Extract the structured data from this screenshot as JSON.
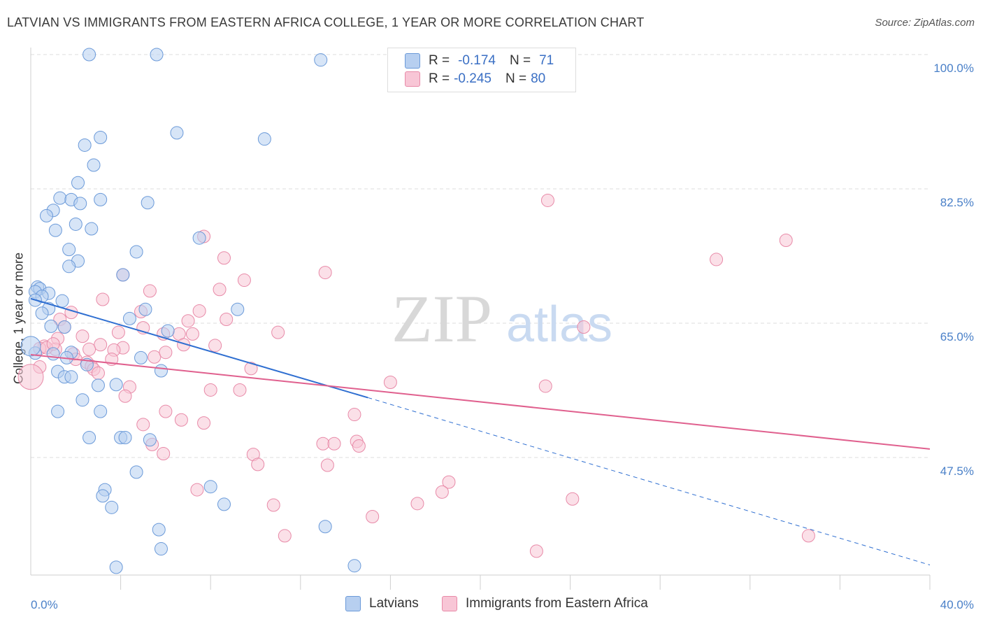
{
  "title": "LATVIAN VS IMMIGRANTS FROM EASTERN AFRICA COLLEGE, 1 YEAR OR MORE CORRELATION CHART",
  "source": "Source: ZipAtlas.com",
  "watermark": {
    "zip": "ZIP",
    "atlas": "atlas"
  },
  "legend": {
    "rows": [
      {
        "r_label": "R =",
        "r_value": "-0.174",
        "n_label": "N =",
        "n_value": "71"
      },
      {
        "r_label": "R =",
        "r_value": "-0.245",
        "n_label": "N =",
        "n_value": "80"
      }
    ]
  },
  "colors": {
    "blue_fill": "#b7cff0",
    "blue_stroke": "#6b9ad9",
    "blue_line": "#2f6fd1",
    "pink_fill": "#f8c6d6",
    "pink_stroke": "#e88aa8",
    "pink_line": "#e0608e",
    "grid": "#dddddd",
    "tick_text": "#4a80c8"
  },
  "chart_data": {
    "type": "scatter",
    "ylabel": "College, 1 year or more",
    "xlim": [
      0,
      40
    ],
    "ylim": [
      35,
      100
    ],
    "y_ticks": [
      47.5,
      65.0,
      82.5,
      100.0
    ],
    "y_tick_labels": [
      "47.5%",
      "65.0%",
      "82.5%",
      "100.0%"
    ],
    "x_tick_labels": [
      "0.0%",
      "40.0%"
    ],
    "series": [
      {
        "name": "Latvians",
        "r": -0.174,
        "n": 71,
        "trend": {
          "x": [
            0,
            15
          ],
          "y": [
            68.2,
            55.3
          ],
          "dashed_to": [
            40,
            33.5
          ]
        },
        "points": [
          [
            2.6,
            100.0
          ],
          [
            5.6,
            100.0
          ],
          [
            12.9,
            99.3
          ],
          [
            6.5,
            89.8
          ],
          [
            3.1,
            89.2
          ],
          [
            10.4,
            89.0
          ],
          [
            2.4,
            88.2
          ],
          [
            2.8,
            85.6
          ],
          [
            2.1,
            83.3
          ],
          [
            1.3,
            81.3
          ],
          [
            3.1,
            81.1
          ],
          [
            1.8,
            81.1
          ],
          [
            2.2,
            80.6
          ],
          [
            5.2,
            80.7
          ],
          [
            1.0,
            79.7
          ],
          [
            0.7,
            79.0
          ],
          [
            2.0,
            77.9
          ],
          [
            2.7,
            77.3
          ],
          [
            1.1,
            77.1
          ],
          [
            7.5,
            76.1
          ],
          [
            1.7,
            74.6
          ],
          [
            4.7,
            74.3
          ],
          [
            2.1,
            73.1
          ],
          [
            1.7,
            72.4
          ],
          [
            4.1,
            71.3
          ],
          [
            0.3,
            69.7
          ],
          [
            0.4,
            69.5
          ],
          [
            0.2,
            69.1
          ],
          [
            0.8,
            68.9
          ],
          [
            0.5,
            68.5
          ],
          [
            0.2,
            68.0
          ],
          [
            1.4,
            67.9
          ],
          [
            0.8,
            66.9
          ],
          [
            5.1,
            66.8
          ],
          [
            9.2,
            66.8
          ],
          [
            0.5,
            66.3
          ],
          [
            4.4,
            65.6
          ],
          [
            0.9,
            64.6
          ],
          [
            1.5,
            64.5
          ],
          [
            6.1,
            64.0
          ],
          [
            0.2,
            61.1
          ],
          [
            1.0,
            61.0
          ],
          [
            1.8,
            61.2
          ],
          [
            1.6,
            60.5
          ],
          [
            4.9,
            60.5
          ],
          [
            2.5,
            59.6
          ],
          [
            5.8,
            58.8
          ],
          [
            1.2,
            58.7
          ],
          [
            1.5,
            58.0
          ],
          [
            1.8,
            58.0
          ],
          [
            3.0,
            56.9
          ],
          [
            3.8,
            57.0
          ],
          [
            2.3,
            55.0
          ],
          [
            1.2,
            53.5
          ],
          [
            3.1,
            53.5
          ],
          [
            2.6,
            50.1
          ],
          [
            4.0,
            50.1
          ],
          [
            4.2,
            50.1
          ],
          [
            5.3,
            49.8
          ],
          [
            4.7,
            45.6
          ],
          [
            3.3,
            43.3
          ],
          [
            8.0,
            43.7
          ],
          [
            3.2,
            42.5
          ],
          [
            8.6,
            41.4
          ],
          [
            3.6,
            41.0
          ],
          [
            13.1,
            38.5
          ],
          [
            5.7,
            38.1
          ],
          [
            5.8,
            35.6
          ],
          [
            3.8,
            33.2
          ],
          [
            14.4,
            33.4
          ],
          [
            0.0,
            62.0
          ]
        ]
      },
      {
        "name": "Immigrants from Eastern Africa",
        "r": -0.245,
        "n": 80,
        "trend": {
          "x": [
            0,
            40
          ],
          "y": [
            60.9,
            48.6
          ]
        },
        "points": [
          [
            23.0,
            81.0
          ],
          [
            33.6,
            75.8
          ],
          [
            7.7,
            76.3
          ],
          [
            8.6,
            73.5
          ],
          [
            30.5,
            73.3
          ],
          [
            13.1,
            71.6
          ],
          [
            4.1,
            71.3
          ],
          [
            9.5,
            70.6
          ],
          [
            5.3,
            69.2
          ],
          [
            8.4,
            69.4
          ],
          [
            3.2,
            68.1
          ],
          [
            1.8,
            66.4
          ],
          [
            7.5,
            66.6
          ],
          [
            4.9,
            66.5
          ],
          [
            1.3,
            65.5
          ],
          [
            8.7,
            65.5
          ],
          [
            7.0,
            65.3
          ],
          [
            1.5,
            64.5
          ],
          [
            5.0,
            64.4
          ],
          [
            24.6,
            64.5
          ],
          [
            11.0,
            63.8
          ],
          [
            3.9,
            63.8
          ],
          [
            5.9,
            63.6
          ],
          [
            7.2,
            63.6
          ],
          [
            6.6,
            63.6
          ],
          [
            1.2,
            63.0
          ],
          [
            2.3,
            63.3
          ],
          [
            3.1,
            62.2
          ],
          [
            0.6,
            62.0
          ],
          [
            0.4,
            61.7
          ],
          [
            1.1,
            61.6
          ],
          [
            0.7,
            61.8
          ],
          [
            6.8,
            62.2
          ],
          [
            8.2,
            62.1
          ],
          [
            2.6,
            61.6
          ],
          [
            4.1,
            61.8
          ],
          [
            3.7,
            61.5
          ],
          [
            1.9,
            61.0
          ],
          [
            5.5,
            60.6
          ],
          [
            3.6,
            60.3
          ],
          [
            2.5,
            59.9
          ],
          [
            2.7,
            59.4
          ],
          [
            0.4,
            59.3
          ],
          [
            2.8,
            59.0
          ],
          [
            3.0,
            58.5
          ],
          [
            9.8,
            59.1
          ],
          [
            0.0,
            58.0
          ],
          [
            16.0,
            57.3
          ],
          [
            22.9,
            56.8
          ],
          [
            4.4,
            56.7
          ],
          [
            8.0,
            56.3
          ],
          [
            9.3,
            56.3
          ],
          [
            4.2,
            55.5
          ],
          [
            6.0,
            53.5
          ],
          [
            14.4,
            53.1
          ],
          [
            6.7,
            52.4
          ],
          [
            5.0,
            51.8
          ],
          [
            7.7,
            52.0
          ],
          [
            5.4,
            49.2
          ],
          [
            13.0,
            49.3
          ],
          [
            13.5,
            49.3
          ],
          [
            14.5,
            49.6
          ],
          [
            14.6,
            49.0
          ],
          [
            5.9,
            48.0
          ],
          [
            9.9,
            47.9
          ],
          [
            10.1,
            46.6
          ],
          [
            13.2,
            46.5
          ],
          [
            18.6,
            44.3
          ],
          [
            7.4,
            43.3
          ],
          [
            18.3,
            43.0
          ],
          [
            24.1,
            42.1
          ],
          [
            10.8,
            41.3
          ],
          [
            17.2,
            41.5
          ],
          [
            15.2,
            39.8
          ],
          [
            11.3,
            37.3
          ],
          [
            34.6,
            37.3
          ],
          [
            22.5,
            35.3
          ],
          [
            1.0,
            62.3
          ],
          [
            2.0,
            60.3
          ],
          [
            6.0,
            61.2
          ]
        ]
      }
    ]
  },
  "bottom_legend": [
    {
      "label": "Latvians"
    },
    {
      "label": "Immigrants from Eastern Africa"
    }
  ]
}
